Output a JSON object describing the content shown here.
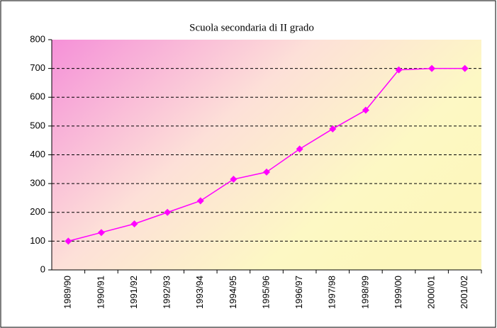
{
  "chart_data": {
    "type": "line",
    "title": "Scuola secondaria di II grado",
    "categories": [
      "1989/90",
      "1990/91",
      "1991/92",
      "1992/93",
      "1993/94",
      "1994/95",
      "1995/96",
      "1996/97",
      "1997/98",
      "1998/99",
      "1999/00",
      "2000/01",
      "2001/02"
    ],
    "series": [
      {
        "name": null,
        "color": "#ff00ff",
        "values": [
          100,
          130,
          160,
          200,
          240,
          315,
          340,
          420,
          490,
          555,
          695,
          700,
          700
        ]
      }
    ],
    "ylim": [
      0,
      800
    ],
    "yticks": [
      0,
      100,
      200,
      300,
      400,
      500,
      600,
      700,
      800
    ],
    "grid": true
  }
}
